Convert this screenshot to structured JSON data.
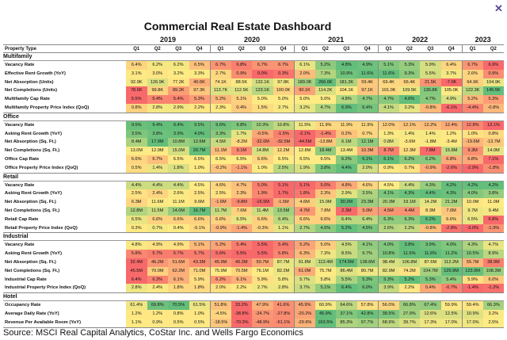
{
  "title": "Commercial Real Estate Dashboard",
  "close_icon": "close-x-icon",
  "source": "Source: MSCI Real Capital Analytics, CoStar Inc. and Wells Fargo Economics",
  "chart_data": {
    "type": "heatmap",
    "title": "Commercial Real Estate Dashboard",
    "row_header": "Property Type",
    "years": [
      {
        "label": "2019",
        "span": 4
      },
      {
        "label": "2020",
        "span": 4
      },
      {
        "label": "2021",
        "span": 4
      },
      {
        "label": "2022",
        "span": 4
      },
      {
        "label": "2023",
        "span": 2
      }
    ],
    "quarters": [
      "Q1",
      "Q2",
      "Q3",
      "Q4",
      "Q1",
      "Q2",
      "Q3",
      "Q4",
      "Q1",
      "Q2",
      "Q3",
      "Q4",
      "Q1",
      "Q2",
      "Q3",
      "Q4",
      "Q1",
      "Q2"
    ],
    "color_scale": {
      "low": "#f8696b",
      "mid": "#ffeb84",
      "high": "#63be7b"
    },
    "sections": [
      {
        "name": "Multifamily",
        "rows": [
          {
            "label": "Vacancy Rate",
            "higher_is_better": false,
            "values": [
              "6.4%",
              "6.2%",
              "6.2%",
              "6.5%",
              "6.7%",
              "6.8%",
              "6.7%",
              "6.7%",
              "6.1%",
              "5.2%",
              "4.8%",
              "4.9%",
              "5.1%",
              "5.3%",
              "5.9%",
              "6.4%",
              "6.7%",
              "6.9%"
            ]
          },
          {
            "label": "Effective Rent Growth (YoY)",
            "higher_is_better": true,
            "values": [
              "3.1%",
              "3.0%",
              "3.2%",
              "3.3%",
              "2.7%",
              "0.9%",
              "0.0%",
              "0.3%",
              "2.0%",
              "7.3%",
              "10.9%",
              "11.6%",
              "11.6%",
              "9.3%",
              "5.5%",
              "3.7%",
              "2.6%",
              "0.9%"
            ]
          },
          {
            "label": "Net Absorption (Units)",
            "higher_is_better": true,
            "values": [
              "92.9K",
              "126.9K",
              "77.2K",
              "40.6K",
              "74.1K",
              "88.5K",
              "132.1K",
              "97.8K",
              "189.0K",
              "266.6K",
              "181.2K",
              "59.4K",
              "69.4K",
              "66.4K",
              "21.5K",
              "-7.0K",
              "64.9K",
              "104.9K"
            ]
          },
          {
            "label": "Net Completions (Units)",
            "higher_is_better": true,
            "values": [
              "78.6K",
              "99.8K",
              "89.2K",
              "97.3K",
              "113.7K",
              "112.5K",
              "123.1K",
              "100.0K",
              "90.1K",
              "114.2K",
              "104.1K",
              "97.1K",
              "101.0K",
              "109.5K",
              "136.8K",
              "105.0K",
              "122.3K",
              "145.5K"
            ]
          },
          {
            "label": "Multifamily Cap Rate",
            "higher_is_better": false,
            "values": [
              "5.5%",
              "5.4%",
              "5.4%",
              "5.3%",
              "5.2%",
              "5.1%",
              "5.0%",
              "5.0%",
              "5.0%",
              "5.0%",
              "4.8%",
              "4.7%",
              "4.7%",
              "4.6%",
              "4.7%",
              "4.9%",
              "5.2%",
              "5.3%"
            ]
          },
          {
            "label": "Multifamily Property Price Index (QoQ)",
            "higher_is_better": true,
            "values": [
              "0.8%",
              "2.8%",
              "2.9%",
              "2.2%",
              "2.3%",
              "0.4%",
              "1.5%",
              "2.7%",
              "3.2%",
              "4.7%",
              "6.9%",
              "6.4%",
              "4.1%",
              "3.2%",
              "-0.8%",
              "-6.1%",
              "-4.4%",
              "-0.8%"
            ]
          }
        ]
      },
      {
        "name": "Office",
        "rows": [
          {
            "label": "Vacancy Rate",
            "higher_is_better": false,
            "values": [
              "9.5%",
              "9.4%",
              "9.4%",
              "9.5%",
              "9.6%",
              "9.8%",
              "10.3%",
              "10.8%",
              "11.5%",
              "11.9%",
              "11.9%",
              "11.9%",
              "12.0%",
              "12.1%",
              "12.2%",
              "12.4%",
              "12.8%",
              "13.1%"
            ]
          },
          {
            "label": "Asking Rent Growth (YoY)",
            "higher_is_better": true,
            "values": [
              "3.5%",
              "3.8%",
              "3.9%",
              "4.0%",
              "3.3%",
              "1.7%",
              "-0.5%",
              "-1.5%",
              "-2.1%",
              "-1.4%",
              "0.2%",
              "0.7%",
              "1.3%",
              "1.4%",
              "1.4%",
              "1.2%",
              "1.0%",
              "0.8%"
            ]
          },
          {
            "label": "Net Absorption (Sq. Ft.)",
            "higher_is_better": true,
            "values": [
              "8.4M",
              "17.9M",
              "10.8M",
              "12.6M",
              "4.5M",
              "-8.2M",
              "-32.0M",
              "-32.5M",
              "-44.5M",
              "-13.8M",
              "6.1M",
              "12.1M",
              "0.8M",
              "-3.6M",
              "-1.8M",
              "-3.4M",
              "-19.6M",
              "-13.7M"
            ]
          },
          {
            "label": "Net Completions (Sq. Ft.)",
            "higher_is_better": true,
            "values": [
              "13.0M",
              "12.9M",
              "15.0M",
              "20.7M",
              "11.1M",
              "9.1M",
              "14.8M",
              "12.2M",
              "12.8M",
              "18.4M",
              "13.4M",
              "10.3M",
              "8.7M",
              "12.3M",
              "7.8M",
              "15.8M",
              "9.3M",
              "14.0M"
            ]
          },
          {
            "label": "Office Cap Rate",
            "higher_is_better": false,
            "values": [
              "6.6%",
              "6.7%",
              "6.5%",
              "6.5%",
              "6.5%",
              "6.5%",
              "6.6%",
              "6.5%",
              "6.5%",
              "6.5%",
              "6.2%",
              "6.1%",
              "6.1%",
              "6.2%",
              "6.2%",
              "6.8%",
              "6.8%",
              "7.1%"
            ]
          },
          {
            "label": "Office Property Price Index (QoQ)",
            "higher_is_better": true,
            "values": [
              "0.5%",
              "1.4%",
              "1.8%",
              "1.0%",
              "-0.2%",
              "-1.1%",
              "1.0%",
              "2.5%",
              "1.9%",
              "3.8%",
              "4.4%",
              "2.0%",
              "0.9%",
              "0.7%",
              "-0.9%",
              "-2.6%",
              "-2.9%",
              "-1.8%"
            ]
          }
        ]
      },
      {
        "name": "Retail",
        "rows": [
          {
            "label": "Vacancy Rate",
            "higher_is_better": false,
            "values": [
              "4.4%",
              "4.4%",
              "4.4%",
              "4.5%",
              "4.6%",
              "4.7%",
              "5.0%",
              "5.1%",
              "5.1%",
              "5.0%",
              "4.8%",
              "4.6%",
              "4.5%",
              "4.4%",
              "4.3%",
              "4.2%",
              "4.2%",
              "4.2%"
            ]
          },
          {
            "label": "Asking Rent Growth (YoY)",
            "higher_is_better": true,
            "values": [
              "2.5%",
              "2.4%",
              "2.6%",
              "2.5%",
              "2.5%",
              "2.3%",
              "1.9%",
              "1.7%",
              "1.8%",
              "2.3%",
              "2.9%",
              "3.5%",
              "4.1%",
              "4.3%",
              "4.4%",
              "4.3%",
              "4.0%",
              "3.8%"
            ]
          },
          {
            "label": "Net Absorption (Sq. Ft.)",
            "higher_is_better": true,
            "values": [
              "6.3M",
              "11.6M",
              "11.1M",
              "9.6M",
              "-1.6M",
              "-9.8M",
              "-16.5M",
              "-1.5M",
              "4.6M",
              "15.0M",
              "30.2M",
              "23.3M",
              "20.3M",
              "19.1M",
              "14.2M",
              "21.2M",
              "10.0M",
              "11.0M"
            ]
          },
          {
            "label": "Net Completions (Sq. Ft.)",
            "higher_is_better": true,
            "values": [
              "12.8M",
              "11.5M",
              "14.0M",
              "16.7M",
              "11.7M",
              "7.6M",
              "11.4M",
              "13.5M",
              "4.7M",
              "7.8M",
              "2.3M",
              "5.0M",
              "4.5M",
              "4.4M",
              "8.3M",
              "7.0M",
              "9.7M",
              "9.4M"
            ]
          },
          {
            "label": "Retail Cap Rate",
            "higher_is_better": false,
            "values": [
              "6.5%",
              "6.6%",
              "6.6%",
              "6.6%",
              "6.6%",
              "6.5%",
              "6.6%",
              "6.4%",
              "6.6%",
              "6.6%",
              "6.4%",
              "6.4%",
              "6.3%",
              "6.3%",
              "6.2%",
              "6.6%",
              "6.5%",
              "6.8%"
            ]
          },
          {
            "label": "Retail Property Price Index (QoQ)",
            "higher_is_better": true,
            "values": [
              "0.3%",
              "0.7%",
              "0.4%",
              "-0.1%",
              "-0.9%",
              "-1.4%",
              "-0.3%",
              "1.1%",
              "2.7%",
              "4.0%",
              "5.2%",
              "4.5%",
              "2.6%",
              "2.2%",
              "-0.8%",
              "-2.8%",
              "-3.0%",
              "-1.9%"
            ]
          }
        ]
      },
      {
        "name": "Industrial",
        "rows": [
          {
            "label": "Vacancy Rate",
            "higher_is_better": false,
            "values": [
              "4.8%",
              "4.9%",
              "4.9%",
              "5.1%",
              "5.2%",
              "5.4%",
              "5.5%",
              "5.4%",
              "5.2%",
              "5.0%",
              "4.5%",
              "4.1%",
              "4.0%",
              "3.8%",
              "3.9%",
              "4.0%",
              "4.3%",
              "4.7%"
            ]
          },
          {
            "label": "Asking Rent Growth (YoY)",
            "higher_is_better": true,
            "values": [
              "5.8%",
              "5.7%",
              "5.7%",
              "5.7%",
              "5.6%",
              "5.5%",
              "5.5%",
              "5.8%",
              "6.3%",
              "7.3%",
              "8.5%",
              "9.7%",
              "10.8%",
              "11.5%",
              "11.6%",
              "11.2%",
              "10.5%",
              "8.9%"
            ]
          },
          {
            "label": "Net Absorption (Sq. Ft.)",
            "higher_is_better": true,
            "values": [
              "32.4M",
              "46.2M",
              "51.6M",
              "43.3M",
              "45.9M",
              "40.2M",
              "50.7M",
              "87.7M",
              "91.8M",
              "113.4M",
              "174.5M",
              "138.6M",
              "98.4M",
              "106.8M",
              "87.6M",
              "112.2M",
              "55.7M",
              "38.9M"
            ]
          },
          {
            "label": "Net Completions (Sq. Ft.)",
            "higher_is_better": true,
            "values": [
              "45.5M",
              "70.0M",
              "62.2M",
              "71.0M",
              "75.9M",
              "70.5M",
              "76.1M",
              "82.2M",
              "61.0M",
              "75.7M",
              "86.4M",
              "80.7M",
              "82.9M",
              "74.2M",
              "104.7M",
              "125.9M",
              "123.9M",
              "108.3M"
            ]
          },
          {
            "label": "Industrial Cap Rate",
            "higher_is_better": false,
            "values": [
              "6.4%",
              "6.3%",
              "6.1%",
              "5.9%",
              "6.2%",
              "6.1%",
              "5.9%",
              "5.8%",
              "5.7%",
              "5.8%",
              "5.5%",
              "5.3%",
              "5.3%",
              "5.2%",
              "5.3%",
              "5.4%",
              "5.9%",
              "6.0%"
            ]
          },
          {
            "label": "Industrial Property Price Index (QoQ)",
            "higher_is_better": true,
            "values": [
              "2.8%",
              "2.4%",
              "1.8%",
              "1.8%",
              "2.0%",
              "2.2%",
              "2.7%",
              "2.8%",
              "3.7%",
              "5.1%",
              "6.4%",
              "6.0%",
              "3.9%",
              "2.2%",
              "0.4%",
              "-0.7%",
              "-1.4%",
              "-1.2%"
            ]
          }
        ]
      },
      {
        "name": "Hotel",
        "rows": [
          {
            "label": "Occupancy Rate",
            "higher_is_better": true,
            "values": [
              "61.4%",
              "69.8%",
              "70.5%",
              "61.5%",
              "51.8%",
              "33.2%",
              "47.9%",
              "41.6%",
              "45.9%",
              "60.9%",
              "64.6%",
              "57.8%",
              "56.0%",
              "66.8%",
              "67.4%",
              "59.9%",
              "59.4%",
              "66.3%"
            ]
          },
          {
            "label": "Average Daily Rate (YoY)",
            "higher_is_better": true,
            "values": [
              "1.2%",
              "1.2%",
              "0.8%",
              "1.0%",
              "-4.5%",
              "-38.8%",
              "-24.7%",
              "-27.8%",
              "-20.2%",
              "45.9%",
              "37.1%",
              "42.8%",
              "38.5%",
              "27.9%",
              "12.6%",
              "12.5%",
              "10.9%",
              "3.2%"
            ]
          },
          {
            "label": "Revenue Per Available Room (YoY)",
            "higher_is_better": true,
            "values": [
              "1.1%",
              "0.9%",
              "0.5%",
              "0.5%",
              "-18.5%",
              "-70.3%",
              "-48.9%",
              "-51.1%",
              "-29.6%",
              "163.5%",
              "85.3%",
              "97.7%",
              "68.9%",
              "39.7%",
              "17.3%",
              "17.0%",
              "17.0%",
              "2.5%"
            ]
          }
        ]
      }
    ]
  }
}
